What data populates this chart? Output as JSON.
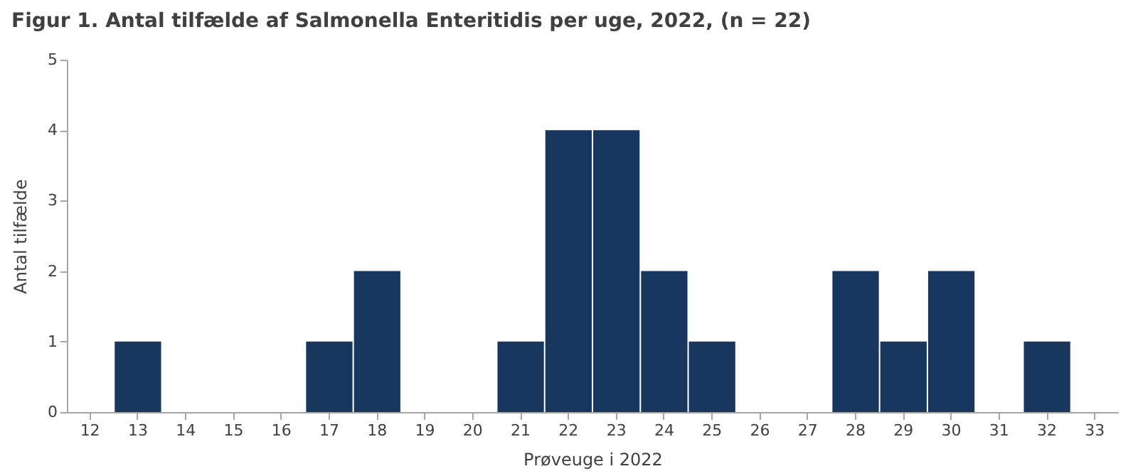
{
  "chart_data": {
    "type": "bar",
    "title": "Figur 1. Antal tilfælde af Salmonella Enteritidis per uge, 2022, (n = 22)",
    "xlabel": "Prøveuge i 2022",
    "ylabel": "Antal tilfælde",
    "categories": [
      "12",
      "13",
      "14",
      "15",
      "16",
      "17",
      "18",
      "19",
      "20",
      "21",
      "22",
      "23",
      "24",
      "25",
      "26",
      "27",
      "28",
      "29",
      "30",
      "31",
      "32",
      "33"
    ],
    "values": [
      0,
      1,
      0,
      0,
      0,
      1,
      2,
      0,
      0,
      1,
      4,
      4,
      2,
      1,
      0,
      0,
      2,
      1,
      2,
      0,
      1,
      0
    ],
    "color": "#17375e",
    "ylim": [
      0,
      5
    ],
    "yticks": [
      0,
      1,
      2,
      3,
      4,
      5
    ],
    "grid": false
  }
}
